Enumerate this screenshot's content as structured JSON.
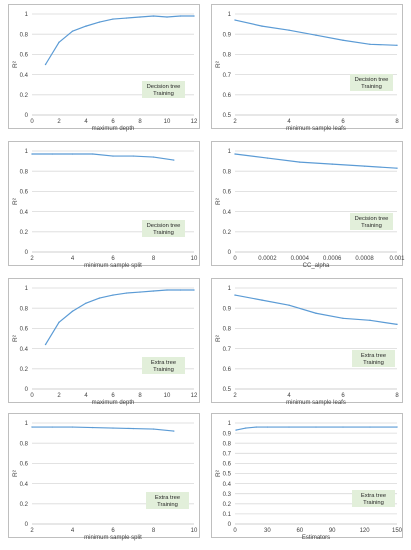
{
  "colors": {
    "line": "#5b9bd5",
    "grid": "#d9d9d9",
    "border": "#bfbfbf",
    "label_bg": "#e2efda",
    "text": "#404040"
  },
  "chart_data": [
    {
      "type": "line",
      "ylabel": "R²",
      "xlabel": "maximum depth",
      "annotation": [
        "Decision tree",
        "Training"
      ],
      "xlim": [
        0,
        12
      ],
      "ylim": [
        0,
        1
      ],
      "xticks": [
        0,
        2,
        4,
        6,
        8,
        10,
        12
      ],
      "xtick_labels": [
        "0",
        "2",
        "4",
        "6",
        "8",
        "10",
        "12"
      ],
      "yticks": [
        0,
        0.2,
        0.4,
        0.6,
        0.8,
        1
      ],
      "ytick_labels": [
        "0",
        "0.2",
        "0.4",
        "0.6",
        "0.8",
        "1"
      ],
      "grid": "horizontal",
      "x": [
        1,
        2,
        3,
        4,
        5,
        6,
        7,
        8,
        9,
        10,
        11,
        12
      ],
      "y": [
        0.5,
        0.72,
        0.83,
        0.88,
        0.92,
        0.95,
        0.96,
        0.97,
        0.98,
        0.97,
        0.98,
        0.98
      ]
    },
    {
      "type": "line",
      "ylabel": "R²",
      "xlabel": "minimum sample leafs",
      "annotation": [
        "Decision tree",
        "Training"
      ],
      "xlim": [
        2,
        8
      ],
      "ylim": [
        0.5,
        1
      ],
      "xticks": [
        2,
        4,
        6,
        8
      ],
      "xtick_labels": [
        "2",
        "4",
        "6",
        "8"
      ],
      "yticks": [
        0.5,
        0.6,
        0.7,
        0.8,
        0.9,
        1
      ],
      "ytick_labels": [
        "0.5",
        "0.6",
        "0.7",
        "0.8",
        "0.9",
        "1"
      ],
      "grid": "horizontal",
      "x": [
        2,
        3,
        4,
        5,
        6,
        7,
        8
      ],
      "y": [
        0.97,
        0.94,
        0.92,
        0.895,
        0.87,
        0.85,
        0.845
      ]
    },
    {
      "type": "line",
      "ylabel": "R²",
      "xlabel": "minimum sample split",
      "annotation": [
        "Decision tree",
        "Training"
      ],
      "xlim": [
        2,
        10
      ],
      "ylim": [
        0,
        1
      ],
      "xticks": [
        2,
        4,
        6,
        8,
        10
      ],
      "xtick_labels": [
        "2",
        "4",
        "6",
        "8",
        "10"
      ],
      "yticks": [
        0,
        0.2,
        0.4,
        0.6,
        0.8,
        1
      ],
      "ytick_labels": [
        "0",
        "0.2",
        "0.4",
        "0.6",
        "0.8",
        "1"
      ],
      "grid": "horizontal",
      "x": [
        2,
        3,
        4,
        5,
        6,
        7,
        8,
        9
      ],
      "y": [
        0.97,
        0.97,
        0.97,
        0.97,
        0.95,
        0.95,
        0.94,
        0.91
      ]
    },
    {
      "type": "line",
      "ylabel": "R²",
      "xlabel": "CC_alpha",
      "annotation": [
        "Decision tree",
        "Training"
      ],
      "xlim": [
        0,
        0.001
      ],
      "ylim": [
        0,
        1
      ],
      "xticks": [
        0,
        0.0002,
        0.0004,
        0.0006,
        0.0008,
        0.001
      ],
      "xtick_labels": [
        "0",
        "0.0002",
        "0.0004",
        "0.0006",
        "0.0008",
        "0.001"
      ],
      "yticks": [
        0,
        0.2,
        0.4,
        0.6,
        0.8,
        1
      ],
      "ytick_labels": [
        "0",
        "0.2",
        "0.4",
        "0.6",
        "0.8",
        "1"
      ],
      "grid": "horizontal",
      "x": [
        0,
        0.0002,
        0.0004,
        0.0006,
        0.0008,
        0.001
      ],
      "y": [
        0.97,
        0.93,
        0.89,
        0.87,
        0.85,
        0.83
      ]
    },
    {
      "type": "line",
      "ylabel": "R²",
      "xlabel": "maximum depth",
      "annotation": [
        "Extra tree",
        "Training"
      ],
      "xlim": [
        0,
        12
      ],
      "ylim": [
        0,
        1
      ],
      "xticks": [
        0,
        2,
        4,
        6,
        8,
        10,
        12
      ],
      "xtick_labels": [
        "0",
        "2",
        "4",
        "6",
        "8",
        "10",
        "12"
      ],
      "yticks": [
        0,
        0.2,
        0.4,
        0.6,
        0.8,
        1
      ],
      "ytick_labels": [
        "0",
        "0.2",
        "0.4",
        "0.6",
        "0.8",
        "1"
      ],
      "grid": "horizontal",
      "x": [
        1,
        2,
        3,
        4,
        5,
        6,
        7,
        8,
        9,
        10,
        11,
        12
      ],
      "y": [
        0.44,
        0.66,
        0.77,
        0.85,
        0.9,
        0.93,
        0.95,
        0.96,
        0.97,
        0.98,
        0.98,
        0.98
      ]
    },
    {
      "type": "line",
      "ylabel": "R²",
      "xlabel": "minimum sample leafs",
      "annotation": [
        "Extra tree",
        "Training"
      ],
      "xlim": [
        2,
        8
      ],
      "ylim": [
        0.5,
        1
      ],
      "xticks": [
        2,
        4,
        6,
        8
      ],
      "xtick_labels": [
        "2",
        "4",
        "6",
        "8"
      ],
      "yticks": [
        0.5,
        0.6,
        0.7,
        0.8,
        0.9,
        1
      ],
      "ytick_labels": [
        "0.5",
        "0.6",
        "0.7",
        "0.8",
        "0.9",
        "1"
      ],
      "grid": "horizontal",
      "x": [
        2,
        3,
        4,
        5,
        6,
        7,
        8
      ],
      "y": [
        0.965,
        0.94,
        0.915,
        0.875,
        0.85,
        0.84,
        0.82
      ]
    },
    {
      "type": "line",
      "ylabel": "R²",
      "xlabel": "minimum sample split",
      "annotation": [
        "Extra tree",
        "Training"
      ],
      "xlim": [
        2,
        10
      ],
      "ylim": [
        0,
        1
      ],
      "xticks": [
        2,
        4,
        6,
        8,
        10
      ],
      "xtick_labels": [
        "2",
        "4",
        "6",
        "8",
        "10"
      ],
      "yticks": [
        0,
        0.2,
        0.4,
        0.6,
        0.8,
        1
      ],
      "ytick_labels": [
        "0",
        "0.2",
        "0.4",
        "0.6",
        "0.8",
        "1"
      ],
      "grid": "horizontal",
      "x": [
        2,
        3,
        4,
        5,
        6,
        7,
        8,
        9
      ],
      "y": [
        0.96,
        0.96,
        0.96,
        0.955,
        0.95,
        0.945,
        0.94,
        0.92
      ]
    },
    {
      "type": "line",
      "ylabel": "R²",
      "xlabel": "Estimators",
      "annotation": [
        "Extra tree",
        "Training"
      ],
      "xlim": [
        0,
        150
      ],
      "ylim": [
        0,
        1
      ],
      "xticks": [
        0,
        30,
        60,
        90,
        120,
        150
      ],
      "xtick_labels": [
        "0",
        "30",
        "60",
        "90",
        "120",
        "150"
      ],
      "yticks": [
        0,
        0.1,
        0.2,
        0.3,
        0.4,
        0.5,
        0.6,
        0.7,
        0.8,
        0.9,
        1
      ],
      "ytick_labels": [
        "0",
        "0.1",
        "0.2",
        "0.3",
        "0.4",
        "0.5",
        "0.6",
        "0.7",
        "0.8",
        "0.9",
        "1"
      ],
      "grid": "horizontal",
      "x": [
        1,
        10,
        20,
        30,
        50,
        75,
        100,
        125,
        150
      ],
      "y": [
        0.93,
        0.95,
        0.96,
        0.96,
        0.96,
        0.96,
        0.96,
        0.96,
        0.96
      ]
    }
  ]
}
